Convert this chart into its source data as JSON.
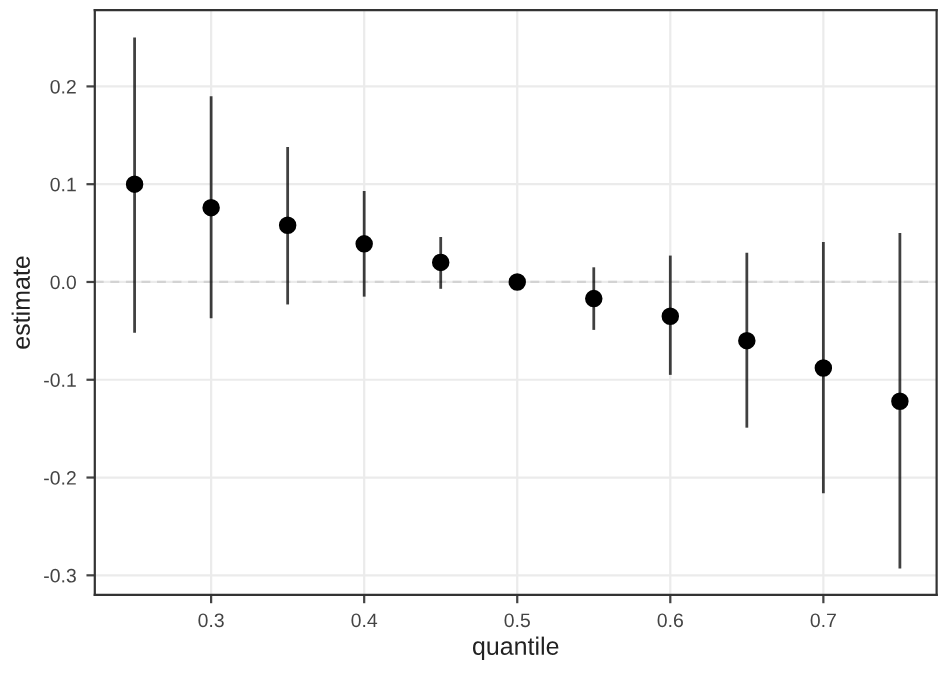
{
  "chart_data": {
    "type": "scatter",
    "xlabel": "quantile",
    "ylabel": "estimate",
    "x": [
      0.25,
      0.3,
      0.35,
      0.4,
      0.45,
      0.5,
      0.55,
      0.6,
      0.65,
      0.7,
      0.75
    ],
    "series": [
      {
        "color": "#000000",
        "values": [
          0.1,
          0.076,
          0.058,
          0.039,
          0.02,
          0.0,
          -0.017,
          -0.035,
          -0.06,
          -0.088,
          -0.122
        ],
        "errors": [
          [
            -0.052,
            0.25
          ],
          [
            -0.037,
            0.19
          ],
          [
            -0.023,
            0.138
          ],
          [
            -0.015,
            0.093
          ],
          [
            -0.007,
            0.046
          ],
          null,
          [
            -0.049,
            0.015
          ],
          [
            -0.095,
            0.027
          ],
          [
            -0.149,
            0.03
          ],
          [
            -0.216,
            0.041
          ],
          [
            -0.293,
            0.05
          ]
        ]
      }
    ],
    "xlim": [
      0.224,
      0.774
    ],
    "ylim": [
      -0.32,
      0.278
    ],
    "xticks": [
      0.3,
      0.4,
      0.5,
      0.6,
      0.7
    ],
    "yticks": [
      -0.3,
      -0.2,
      -0.1,
      {
        "value": 0,
        "label": "0.0"
      },
      0.1,
      0.2
    ],
    "ref_lines": [
      {
        "axis": "y",
        "value": 0,
        "color": "#d3d3d3",
        "line_style": "dashed"
      }
    ],
    "grid": true,
    "marker": "circle"
  }
}
